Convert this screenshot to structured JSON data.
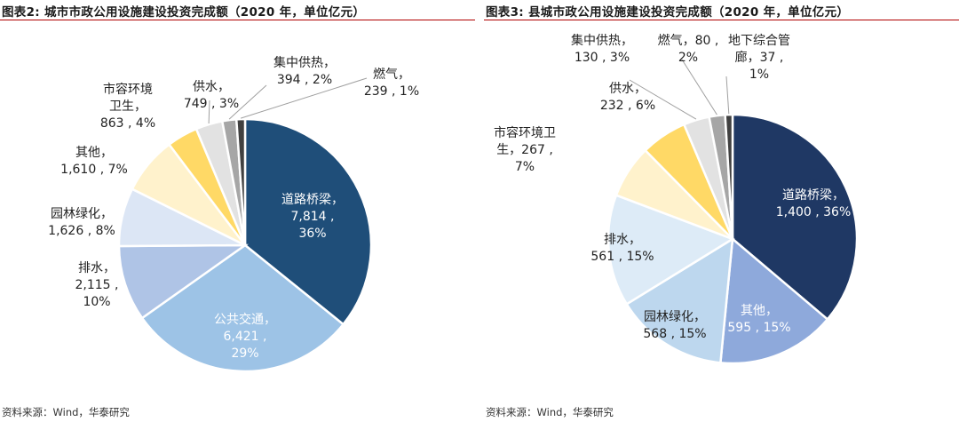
{
  "chart_data": [
    {
      "type": "pie",
      "title": "图表2:  城市市政公用设施建设投资完成额（2020 年，单位亿元）",
      "source": "资料来源：Wind，华泰研究",
      "unit": "亿元",
      "slices": [
        {
          "name": "道路桥梁",
          "value": 7814,
          "pct": 36,
          "color": "#1F4E79",
          "label_lines": [
            "道路桥梁，",
            "7,814 ,",
            "36%"
          ]
        },
        {
          "name": "公共交通",
          "value": 6421,
          "pct": 29,
          "color": "#9DC3E6",
          "label_lines": [
            "公共交通，",
            "6,421 ,",
            "29%"
          ]
        },
        {
          "name": "排水",
          "value": 2115,
          "pct": 10,
          "color": "#AFC4E6",
          "label_lines": [
            "排水，",
            "2,115 ,",
            "10%"
          ]
        },
        {
          "name": "园林绿化",
          "value": 1626,
          "pct": 8,
          "color": "#DCE6F5",
          "label_lines": [
            "园林绿化，",
            "1,626 , 8%"
          ]
        },
        {
          "name": "其他",
          "value": 1610,
          "pct": 7,
          "color": "#FFF2CC",
          "label_lines": [
            "其他，",
            "1,610 , 7%"
          ]
        },
        {
          "name": "市容环境卫生",
          "value": 863,
          "pct": 4,
          "color": "#FFD966",
          "label_lines": [
            "市容环境",
            "卫生，",
            "863 , 4%"
          ]
        },
        {
          "name": "供水",
          "value": 749,
          "pct": 3,
          "color": "#E2E2E2",
          "label_lines": [
            "供水，",
            "749 , 3%"
          ]
        },
        {
          "name": "集中供热",
          "value": 394,
          "pct": 2,
          "color": "#A6A6A6",
          "label_lines": [
            "集中供热，",
            "394 , 2%"
          ]
        },
        {
          "name": "燃气",
          "value": 239,
          "pct": 1,
          "color": "#404040",
          "label_lines": [
            "燃气，",
            "239 , 1%"
          ]
        }
      ]
    },
    {
      "type": "pie",
      "title": "图表3:  县城市政公用设施建设投资完成额（2020 年，单位亿元）",
      "source": "资料来源：Wind，华泰研究",
      "unit": "亿元",
      "slices": [
        {
          "name": "道路桥梁",
          "value": 1400,
          "pct": 36,
          "color": "#1F3864",
          "label_lines": [
            "道路桥梁，",
            "1,400 , 36%"
          ]
        },
        {
          "name": "其他",
          "value": 595,
          "pct": 15,
          "color": "#8EA9DB",
          "label_lines": [
            "其他，",
            "595 , 15%"
          ]
        },
        {
          "name": "园林绿化",
          "value": 568,
          "pct": 15,
          "color": "#BDD7EE",
          "label_lines": [
            "园林绿化，",
            "568 , 15%"
          ]
        },
        {
          "name": "排水",
          "value": 561,
          "pct": 15,
          "color": "#DDEBF7",
          "label_lines": [
            "排水，",
            "561 , 15%"
          ]
        },
        {
          "name": "市容环境卫生",
          "value": 267,
          "pct": 7,
          "color": "#FFF2CC",
          "label_lines": [
            "市容环境卫",
            "生，267 ,",
            "7%"
          ]
        },
        {
          "name": "供水",
          "value": 232,
          "pct": 6,
          "color": "#FFD966",
          "label_lines": [
            "供水，",
            "232 , 6%"
          ]
        },
        {
          "name": "集中供热",
          "value": 130,
          "pct": 3,
          "color": "#E2E2E2",
          "label_lines": [
            "集中供热，",
            "130 , 3%"
          ]
        },
        {
          "name": "燃气",
          "value": 80,
          "pct": 2,
          "color": "#A6A6A6",
          "label_lines": [
            "燃气，80 ,",
            "2%"
          ]
        },
        {
          "name": "地下综合管廊",
          "value": 37,
          "pct": 1,
          "color": "#404040",
          "label_lines": [
            "地下综合管",
            "廊，37 ,",
            "1%"
          ]
        }
      ]
    }
  ]
}
